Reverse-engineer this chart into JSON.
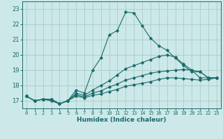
{
  "xlabel": "Humidex (Indice chaleur)",
  "bg_color": "#cce8e8",
  "grid_color": "#aacccc",
  "line_color": "#1a6b6b",
  "xlim": [
    -0.5,
    23.5
  ],
  "ylim": [
    16.5,
    23.5
  ],
  "yticks": [
    17,
    18,
    19,
    20,
    21,
    22,
    23
  ],
  "xticks": [
    0,
    1,
    2,
    3,
    4,
    5,
    6,
    7,
    8,
    9,
    10,
    11,
    12,
    13,
    14,
    15,
    16,
    17,
    18,
    19,
    20,
    21,
    22,
    23
  ],
  "lines": [
    {
      "x": [
        0,
        1,
        2,
        3,
        4,
        5,
        6,
        7,
        8,
        9,
        10,
        11,
        12,
        13,
        14,
        15,
        16,
        17,
        18,
        19,
        20,
        21,
        22,
        23
      ],
      "y": [
        17.3,
        17.0,
        17.1,
        17.1,
        16.8,
        17.0,
        17.7,
        17.5,
        19.0,
        19.8,
        21.3,
        21.6,
        22.8,
        22.75,
        21.9,
        21.1,
        20.6,
        20.3,
        19.8,
        19.3,
        18.9,
        18.9,
        18.5,
        18.5
      ]
    },
    {
      "x": [
        0,
        1,
        2,
        3,
        4,
        5,
        6,
        7,
        8,
        9,
        10,
        11,
        12,
        13,
        14,
        15,
        16,
        17,
        18,
        19,
        20,
        21,
        22,
        23
      ],
      "y": [
        17.3,
        17.0,
        17.1,
        17.1,
        16.8,
        17.0,
        17.5,
        17.35,
        17.7,
        18.0,
        18.3,
        18.7,
        19.1,
        19.3,
        19.5,
        19.7,
        19.9,
        20.0,
        19.85,
        19.4,
        19.0,
        18.9,
        18.5,
        18.5
      ]
    },
    {
      "x": [
        0,
        1,
        2,
        3,
        4,
        5,
        6,
        7,
        8,
        9,
        10,
        11,
        12,
        13,
        14,
        15,
        16,
        17,
        18,
        19,
        20,
        21,
        22,
        23
      ],
      "y": [
        17.3,
        17.0,
        17.1,
        17.1,
        16.8,
        17.0,
        17.4,
        17.25,
        17.5,
        17.65,
        17.9,
        18.1,
        18.35,
        18.5,
        18.65,
        18.8,
        18.9,
        18.95,
        19.0,
        19.05,
        19.0,
        18.5,
        18.5,
        18.5
      ]
    },
    {
      "x": [
        0,
        1,
        2,
        3,
        4,
        5,
        6,
        7,
        8,
        9,
        10,
        11,
        12,
        13,
        14,
        15,
        16,
        17,
        18,
        19,
        20,
        21,
        22,
        23
      ],
      "y": [
        17.3,
        17.0,
        17.1,
        17.0,
        16.8,
        17.0,
        17.3,
        17.2,
        17.35,
        17.45,
        17.6,
        17.75,
        17.95,
        18.05,
        18.15,
        18.25,
        18.4,
        18.5,
        18.5,
        18.45,
        18.4,
        18.35,
        18.4,
        18.5
      ]
    }
  ]
}
